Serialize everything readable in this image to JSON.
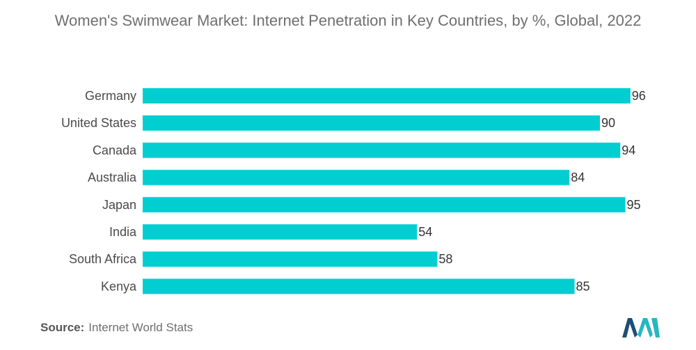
{
  "chart_data": {
    "type": "bar",
    "orientation": "horizontal",
    "title": "Women's Swimwear Market: Internet Penetration in Key Countries, by %, Global, 2022",
    "categories": [
      "Germany",
      "United States",
      "Canada",
      "Australia",
      "Japan",
      "India",
      "South Africa",
      "Kenya"
    ],
    "values": [
      96,
      90,
      94,
      84,
      95,
      54,
      58,
      85
    ],
    "xlim": [
      0,
      100
    ],
    "xlabel": "",
    "ylabel": "",
    "grid": false,
    "bar_color": "#00ced1"
  },
  "source": {
    "label": "Source:",
    "text": "Internet World Stats"
  },
  "colors": {
    "logo_dark": "#1d4f74",
    "logo_teal": "#27b6c2"
  }
}
